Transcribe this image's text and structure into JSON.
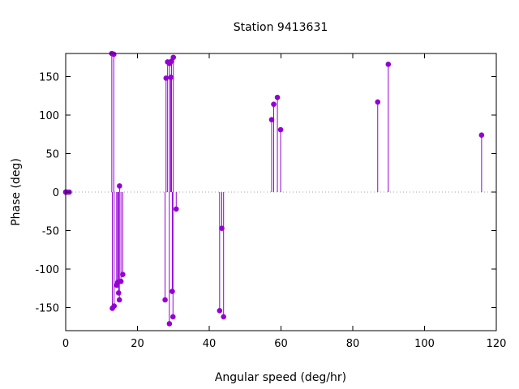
{
  "chart_data": {
    "type": "scatter",
    "style": "impulses-with-points",
    "title": "Station 9413631",
    "xlabel": "Angular speed (deg/hr)",
    "ylabel": "Phase (deg)",
    "xlim": [
      0,
      120
    ],
    "ylim": [
      -180,
      180
    ],
    "xticks": [
      0,
      20,
      40,
      60,
      80,
      100,
      120
    ],
    "yticks": [
      -150,
      -100,
      -50,
      0,
      50,
      100,
      150
    ],
    "xtick_labels": [
      "0",
      "20",
      "40",
      "60",
      "80",
      "100",
      "120"
    ],
    "ytick_labels": [
      "-150",
      "-100",
      "-50",
      "0",
      "50",
      "100",
      "150"
    ],
    "grid": false,
    "zero_line": true,
    "color": "#9400d3",
    "points": [
      {
        "x": 0.0,
        "y": 0
      },
      {
        "x": 0.04,
        "y": 0
      },
      {
        "x": 0.08,
        "y": 0
      },
      {
        "x": 0.5,
        "y": 0
      },
      {
        "x": 1.0,
        "y": 0
      },
      {
        "x": 12.85,
        "y": 180
      },
      {
        "x": 13.4,
        "y": 179
      },
      {
        "x": 13.0,
        "y": -151
      },
      {
        "x": 13.5,
        "y": -148
      },
      {
        "x": 14.2,
        "y": -121
      },
      {
        "x": 14.5,
        "y": -117
      },
      {
        "x": 14.75,
        "y": -131
      },
      {
        "x": 14.96,
        "y": -140
      },
      {
        "x": 15.0,
        "y": 8
      },
      {
        "x": 15.4,
        "y": -116
      },
      {
        "x": 15.9,
        "y": -107
      },
      {
        "x": 27.7,
        "y": -140
      },
      {
        "x": 27.97,
        "y": 148
      },
      {
        "x": 28.4,
        "y": 169
      },
      {
        "x": 28.98,
        "y": 167
      },
      {
        "x": 28.9,
        "y": -171
      },
      {
        "x": 29.3,
        "y": 149
      },
      {
        "x": 29.5,
        "y": 170
      },
      {
        "x": 29.7,
        "y": -129
      },
      {
        "x": 29.9,
        "y": -162
      },
      {
        "x": 30.0,
        "y": 175
      },
      {
        "x": 30.8,
        "y": -22
      },
      {
        "x": 42.9,
        "y": -154
      },
      {
        "x": 43.5,
        "y": -47
      },
      {
        "x": 44.0,
        "y": -162
      },
      {
        "x": 57.4,
        "y": 94
      },
      {
        "x": 57.97,
        "y": 114
      },
      {
        "x": 59.0,
        "y": 123
      },
      {
        "x": 59.9,
        "y": 81
      },
      {
        "x": 86.95,
        "y": 117
      },
      {
        "x": 89.9,
        "y": 166
      },
      {
        "x": 115.9,
        "y": 74
      }
    ]
  }
}
